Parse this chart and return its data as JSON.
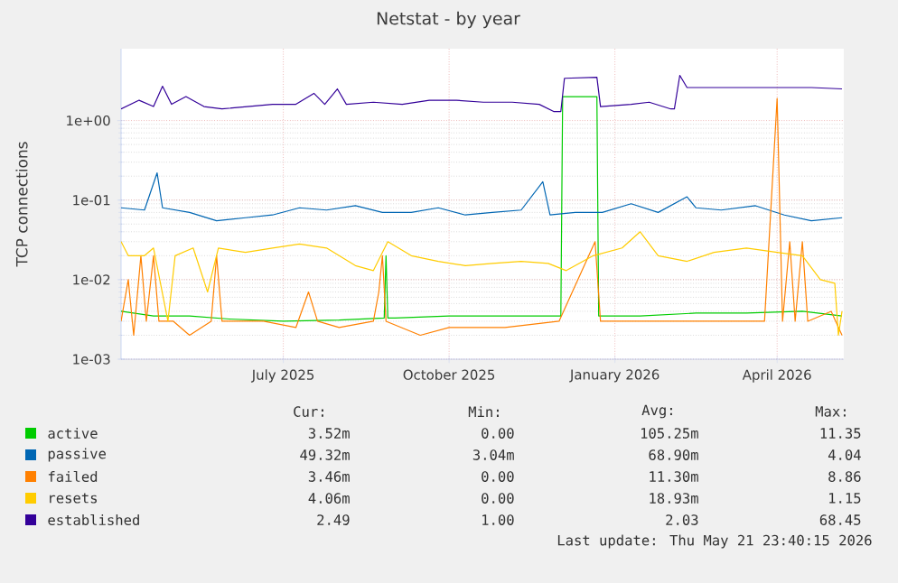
{
  "chart_data": {
    "type": "line",
    "title": "Netstat - by year",
    "ylabel": "TCP connections",
    "log": true,
    "grid": true,
    "legend": "bottom",
    "xlim": [
      "2025-04-02",
      "2026-05-08"
    ],
    "ylim": [
      0.001,
      8
    ],
    "xticks": [
      {
        "value": "2025-07-01",
        "label": "July 2025"
      },
      {
        "value": "2025-10-01",
        "label": "October 2025"
      },
      {
        "value": "2026-01-01",
        "label": "January 2026"
      },
      {
        "value": "2026-04-01",
        "label": "April 2026"
      }
    ],
    "yticks": [
      {
        "value": 0.001,
        "label": "1e-03"
      },
      {
        "value": 0.01,
        "label": "1e-02"
      },
      {
        "value": 0.1,
        "label": "1e-01"
      },
      {
        "value": 1,
        "label": "1e+00"
      }
    ],
    "series": [
      {
        "name": "active",
        "color": "#00cc00",
        "x": [
          "2025-04-02",
          "2025-04-20",
          "2025-05-10",
          "2025-06-01",
          "2025-07-01",
          "2025-08-01",
          "2025-08-26",
          "2025-08-27",
          "2025-08-28",
          "2025-09-01",
          "2025-10-01",
          "2025-11-01",
          "2025-12-02",
          "2025-12-03",
          "2025-12-22",
          "2025-12-23",
          "2026-01-15",
          "2026-02-15",
          "2026-03-15",
          "2026-04-15",
          "2026-05-07"
        ],
        "values": [
          0.004,
          0.0035,
          0.0035,
          0.0032,
          0.003,
          0.0031,
          0.0033,
          0.02,
          0.0033,
          0.0033,
          0.0035,
          0.0035,
          0.0035,
          2.0,
          2.0,
          0.0035,
          0.0035,
          0.0038,
          0.0038,
          0.004,
          0.0035
        ]
      },
      {
        "name": "passive",
        "color": "#0066b3",
        "x": [
          "2025-04-02",
          "2025-04-15",
          "2025-04-22",
          "2025-04-25",
          "2025-05-10",
          "2025-05-25",
          "2025-06-10",
          "2025-06-25",
          "2025-07-10",
          "2025-07-25",
          "2025-08-10",
          "2025-08-25",
          "2025-09-10",
          "2025-09-25",
          "2025-10-10",
          "2025-10-25",
          "2025-11-10",
          "2025-11-22",
          "2025-11-26",
          "2025-12-10",
          "2025-12-25",
          "2026-01-10",
          "2026-01-25",
          "2026-02-10",
          "2026-02-15",
          "2026-03-01",
          "2026-03-20",
          "2026-04-05",
          "2026-04-20",
          "2026-05-07"
        ],
        "values": [
          0.08,
          0.075,
          0.22,
          0.08,
          0.07,
          0.055,
          0.06,
          0.065,
          0.08,
          0.075,
          0.085,
          0.07,
          0.07,
          0.08,
          0.065,
          0.07,
          0.075,
          0.17,
          0.065,
          0.07,
          0.07,
          0.09,
          0.07,
          0.11,
          0.08,
          0.075,
          0.085,
          0.065,
          0.055,
          0.06
        ]
      },
      {
        "name": "failed",
        "color": "#ff8000",
        "x": [
          "2025-04-02",
          "2025-04-06",
          "2025-04-09",
          "2025-04-13",
          "2025-04-16",
          "2025-04-20",
          "2025-04-23",
          "2025-05-01",
          "2025-05-10",
          "2025-05-22",
          "2025-05-25",
          "2025-05-28",
          "2025-06-20",
          "2025-07-08",
          "2025-07-15",
          "2025-07-20",
          "2025-08-01",
          "2025-08-20",
          "2025-08-23",
          "2025-08-25",
          "2025-08-27",
          "2025-09-15",
          "2025-10-01",
          "2025-11-01",
          "2025-12-01",
          "2025-12-21",
          "2025-12-24",
          "2026-01-20",
          "2026-02-20",
          "2026-03-25",
          "2026-04-01",
          "2026-04-04",
          "2026-04-08",
          "2026-04-11",
          "2026-04-15",
          "2026-04-18",
          "2026-05-01",
          "2026-05-07"
        ],
        "values": [
          0.003,
          0.01,
          0.002,
          0.02,
          0.003,
          0.02,
          0.003,
          0.003,
          0.002,
          0.003,
          0.02,
          0.003,
          0.003,
          0.0025,
          0.007,
          0.003,
          0.0025,
          0.003,
          0.007,
          0.02,
          0.003,
          0.002,
          0.0025,
          0.0025,
          0.003,
          0.03,
          0.003,
          0.003,
          0.003,
          0.003,
          1.9,
          0.003,
          0.03,
          0.003,
          0.03,
          0.003,
          0.004,
          0.002
        ]
      },
      {
        "name": "resets",
        "color": "#ffcc00",
        "x": [
          "2025-04-02",
          "2025-04-06",
          "2025-04-15",
          "2025-04-20",
          "2025-04-28",
          "2025-05-02",
          "2025-05-12",
          "2025-05-20",
          "2025-05-26",
          "2025-06-10",
          "2025-06-25",
          "2025-07-10",
          "2025-07-25",
          "2025-08-10",
          "2025-08-20",
          "2025-08-28",
          "2025-09-10",
          "2025-09-25",
          "2025-10-10",
          "2025-10-25",
          "2025-11-10",
          "2025-11-25",
          "2025-12-05",
          "2025-12-20",
          "2026-01-05",
          "2026-01-15",
          "2026-01-25",
          "2026-02-10",
          "2026-02-25",
          "2026-03-15",
          "2026-04-01",
          "2026-04-15",
          "2026-04-25",
          "2026-05-03",
          "2026-05-05",
          "2026-05-07"
        ],
        "values": [
          0.03,
          0.02,
          0.02,
          0.025,
          0.003,
          0.02,
          0.025,
          0.007,
          0.025,
          0.022,
          0.025,
          0.028,
          0.025,
          0.015,
          0.013,
          0.03,
          0.02,
          0.017,
          0.015,
          0.016,
          0.017,
          0.016,
          0.013,
          0.02,
          0.025,
          0.04,
          0.02,
          0.017,
          0.022,
          0.025,
          0.022,
          0.02,
          0.01,
          0.009,
          0.002,
          0.004
        ]
      },
      {
        "name": "established",
        "color": "#330099",
        "x": [
          "2025-04-02",
          "2025-04-12",
          "2025-04-20",
          "2025-04-25",
          "2025-04-30",
          "2025-05-08",
          "2025-05-18",
          "2025-05-28",
          "2025-06-11",
          "2025-06-25",
          "2025-07-08",
          "2025-07-18",
          "2025-07-24",
          "2025-07-31",
          "2025-08-05",
          "2025-08-20",
          "2025-09-05",
          "2025-09-20",
          "2025-10-05",
          "2025-10-20",
          "2025-11-05",
          "2025-11-20",
          "2025-11-28",
          "2025-12-02",
          "2025-12-04",
          "2025-12-22",
          "2025-12-24",
          "2026-01-10",
          "2026-01-20",
          "2026-02-01",
          "2026-02-03",
          "2026-02-06",
          "2026-02-10",
          "2026-03-01",
          "2026-04-01",
          "2026-04-20",
          "2026-05-07"
        ],
        "values": [
          1.4,
          1.8,
          1.5,
          2.7,
          1.6,
          2.0,
          1.5,
          1.4,
          1.5,
          1.6,
          1.6,
          2.2,
          1.6,
          2.5,
          1.6,
          1.7,
          1.6,
          1.8,
          1.8,
          1.7,
          1.7,
          1.6,
          1.3,
          1.3,
          3.4,
          3.5,
          1.5,
          1.6,
          1.7,
          1.4,
          1.4,
          3.7,
          2.6,
          2.6,
          2.6,
          2.6,
          2.5
        ]
      }
    ],
    "annotations": [
      "Cur:",
      "Min:",
      "Avg:",
      "Max:",
      "3.52m",
      "0.00",
      "105.25m",
      "11.35",
      "49.32m",
      "3.04m",
      "68.90m",
      "4.04",
      "3.46m",
      "0.00",
      "11.30m",
      "8.86",
      "4.06m",
      "0.00",
      "18.93m",
      "1.15",
      "2.49",
      "1.00",
      "2.03",
      "68.45",
      "Last update: Thu May 21 23:40:15 2026"
    ]
  }
}
